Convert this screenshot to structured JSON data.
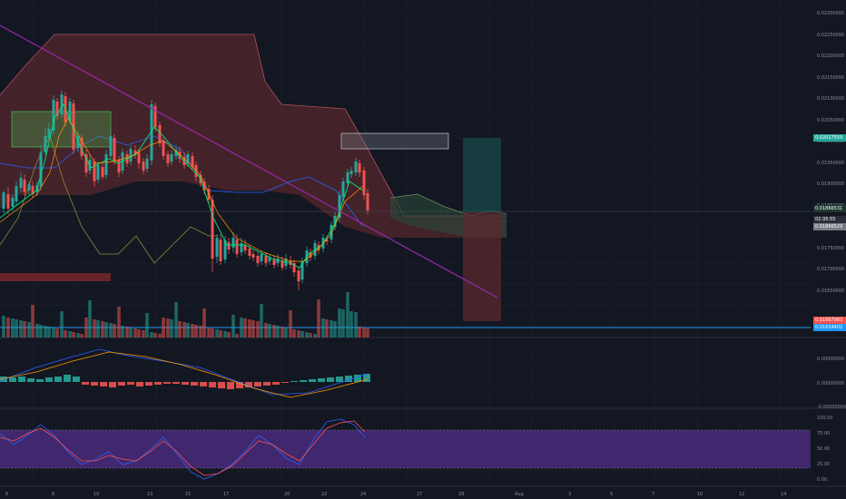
{
  "colors": {
    "background": "#131722",
    "grid": "#1f2330",
    "up": "#26a69a",
    "down": "#ef5350",
    "trendline": "#9c27b0",
    "hline": "#2196f3",
    "stoch_bg": "#4a2a7a",
    "cloud_red": "#6b2b30",
    "cloud_green": "#2a4a3a",
    "rect_green": "#4caf50",
    "rect_gray": "#787b86"
  },
  "price_axis": [
    "0.02300000",
    "0.02250000",
    "0.02200000",
    "0.02150000",
    "0.02100000",
    "0.02050000",
    "0.02000000",
    "0.01950000",
    "0.01900000",
    "0.01850000",
    "0.01800000",
    "0.01750000",
    "0.01700000",
    "0.01650000"
  ],
  "price_tags": [
    {
      "name": "price-tag-green",
      "text": "0.02017559",
      "color": "#26a69a"
    },
    {
      "name": "price-tag-current",
      "text": "0.01866531",
      "color": "#1e3a2e"
    },
    {
      "name": "price-tag-timer",
      "text": "02:35:55",
      "color": "#2a2e39"
    },
    {
      "name": "price-tag-gray",
      "text": "0.01866529",
      "color": "#787b86"
    },
    {
      "name": "price-tag-red",
      "text": "0.01667983",
      "color": "#ef5350"
    },
    {
      "name": "price-tag-blue",
      "text": "0.01654402",
      "color": "#2196f3"
    }
  ],
  "macd_axis": [
    "0.00000000",
    "0.00000000",
    "-0.00050000"
  ],
  "stoch_axis": [
    "100.00",
    "75.00",
    "50.00",
    "25.00",
    "0.00"
  ],
  "x_axis": [
    "6",
    "8",
    "10",
    "13",
    "15",
    "17",
    "20",
    "22",
    "24",
    "27",
    "29",
    "Aug",
    "3",
    "5",
    "7",
    "10",
    "12",
    "14"
  ]
}
